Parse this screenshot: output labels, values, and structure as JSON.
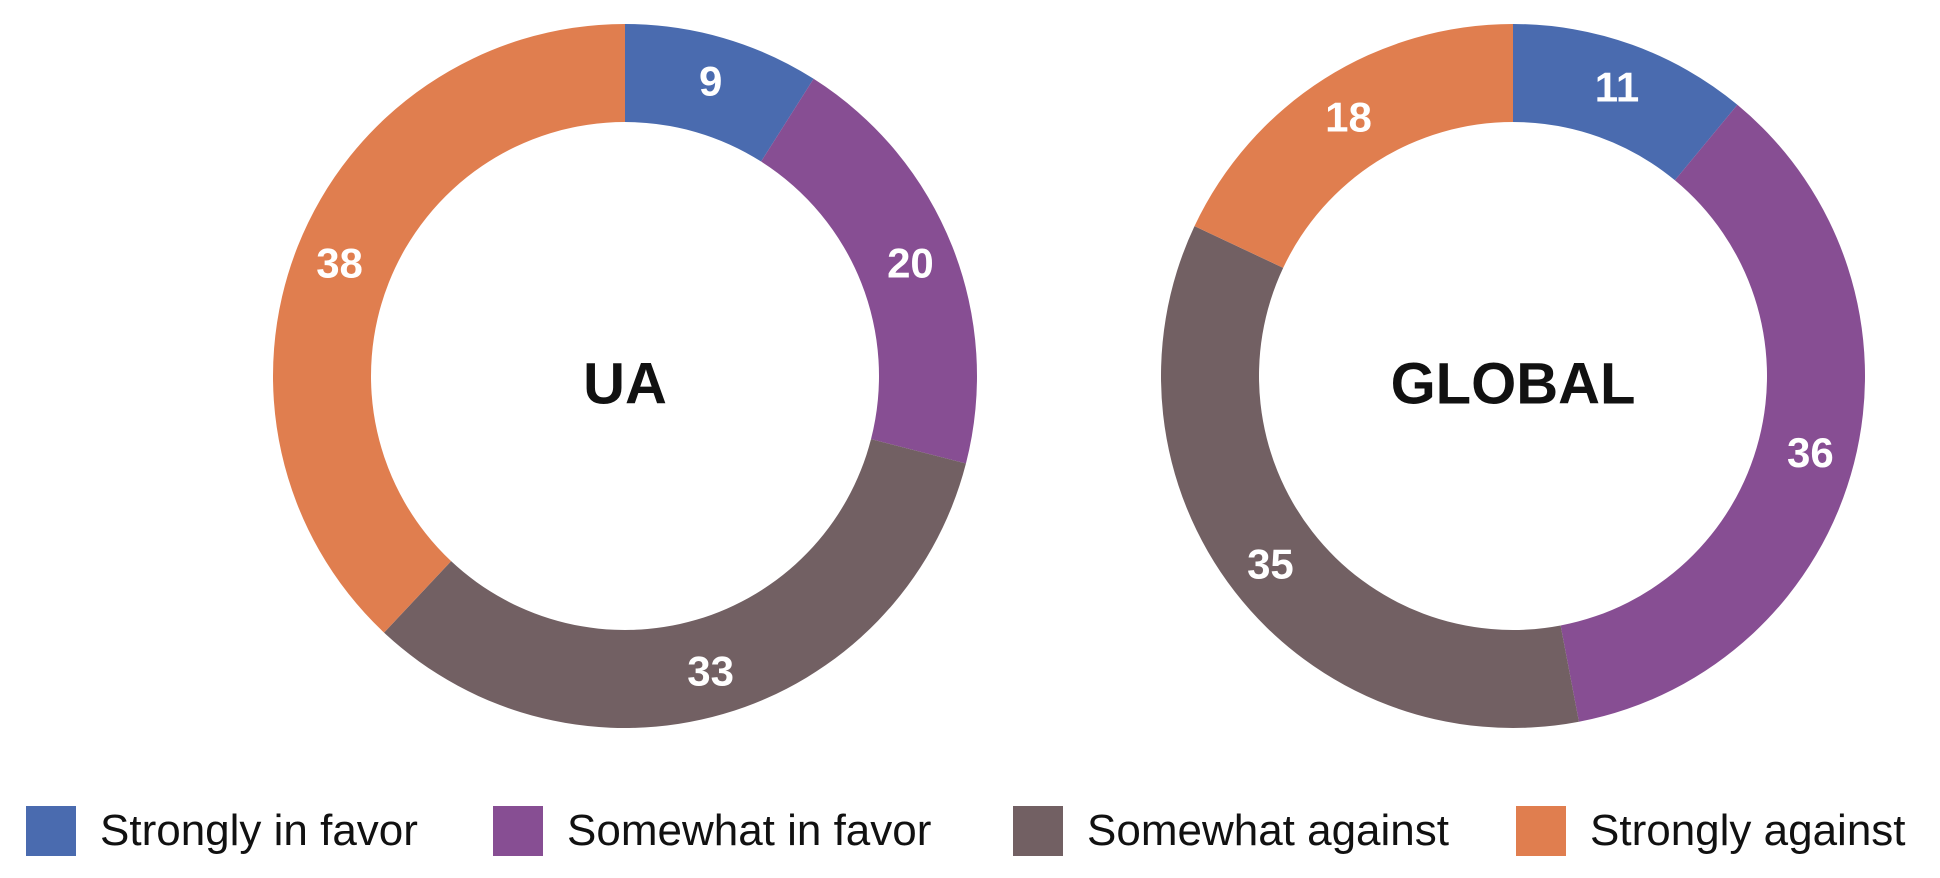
{
  "chart_data": [
    {
      "type": "pie",
      "title": "UA",
      "categories": [
        "Strongly in favor",
        "Somewhat in favor",
        "Somewhat against",
        "Strongly against"
      ],
      "values": [
        9,
        20,
        33,
        38
      ],
      "colors": [
        "#4a6baf",
        "#874e93",
        "#726063",
        "#e07e4f"
      ]
    },
    {
      "type": "pie",
      "title": "GLOBAL",
      "categories": [
        "Strongly in favor",
        "Somewhat in favor",
        "Somewhat against",
        "Strongly against"
      ],
      "values": [
        11,
        36,
        35,
        18
      ],
      "colors": [
        "#4a6baf",
        "#874e93",
        "#726063",
        "#e07e4f"
      ]
    }
  ],
  "legend": {
    "placement": "bottom",
    "items": [
      {
        "label": "Strongly in favor",
        "color": "#4a6baf"
      },
      {
        "label": "Somewhat in favor",
        "color": "#874e93"
      },
      {
        "label": "Somewhat against",
        "color": "#726063"
      },
      {
        "label": "Strongly against",
        "color": "#e07e4f"
      }
    ]
  }
}
